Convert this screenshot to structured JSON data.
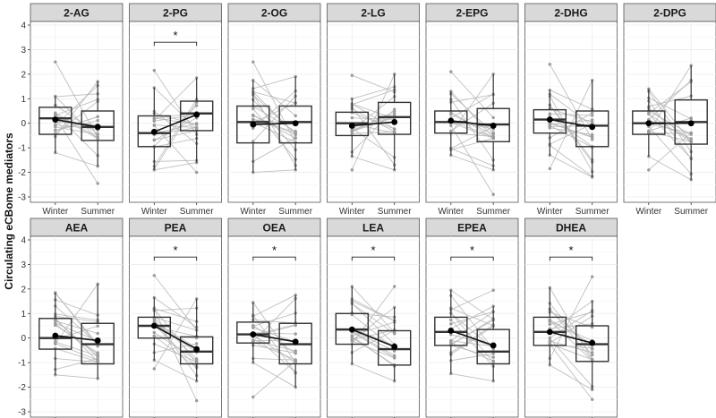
{
  "chart_data": {
    "type": "boxplot-faceted",
    "ylabel": "Circulating eCBome mediators",
    "ylim": [
      -3,
      4
    ],
    "yticks": [
      -3,
      -2,
      -1,
      0,
      1,
      2,
      3,
      4
    ],
    "groups": [
      "Winter",
      "Summer"
    ],
    "significance_label": "*",
    "colors": {
      "strip": "#d9d9d9",
      "box": "#333333",
      "lines": "#b5b5b5",
      "mean": "#000000",
      "grid": "#ececec"
    },
    "panels": [
      {
        "name": "2-AG",
        "significant": false,
        "mean": [
          0.15,
          -0.15
        ],
        "box": [
          {
            "min": -1.2,
            "q1": -0.45,
            "median": 0.2,
            "q3": 0.65,
            "max": 1.1,
            "outliers": [
              2.5
            ]
          },
          {
            "min": -1.75,
            "q1": -0.7,
            "median": -0.15,
            "q3": 0.5,
            "max": 1.7,
            "outliers": [
              -2.45
            ]
          }
        ]
      },
      {
        "name": "2-PG",
        "significant": true,
        "mean": [
          -0.35,
          0.35
        ],
        "box": [
          {
            "min": -1.9,
            "q1": -0.95,
            "median": -0.4,
            "q3": 0.3,
            "max": 1.45,
            "outliers": [
              2.15
            ]
          },
          {
            "min": -1.6,
            "q1": -0.3,
            "median": 0.4,
            "q3": 0.9,
            "max": 1.85,
            "outliers": [
              -2.0
            ]
          }
        ]
      },
      {
        "name": "2-OG",
        "significant": false,
        "mean": [
          -0.05,
          0.0
        ],
        "box": [
          {
            "min": -2.0,
            "q1": -0.8,
            "median": 0.05,
            "q3": 0.7,
            "max": 1.75,
            "outliers": [
              2.5
            ]
          },
          {
            "min": -1.9,
            "q1": -0.8,
            "median": 0.05,
            "q3": 0.7,
            "max": 1.9,
            "outliers": []
          }
        ]
      },
      {
        "name": "2-LG",
        "significant": false,
        "mean": [
          -0.1,
          0.05
        ],
        "box": [
          {
            "min": -1.35,
            "q1": -0.5,
            "median": 0.0,
            "q3": 0.45,
            "max": 1.0,
            "outliers": [
              1.95,
              -1.9
            ]
          },
          {
            "min": -1.9,
            "q1": -0.45,
            "median": 0.25,
            "q3": 0.85,
            "max": 2.0,
            "outliers": []
          }
        ]
      },
      {
        "name": "2-EPG",
        "significant": false,
        "mean": [
          0.1,
          -0.1
        ],
        "box": [
          {
            "min": -1.3,
            "q1": -0.4,
            "median": 0.05,
            "q3": 0.5,
            "max": 1.3,
            "outliers": [
              2.1
            ]
          },
          {
            "min": -1.9,
            "q1": -0.75,
            "median": -0.05,
            "q3": 0.6,
            "max": 2.0,
            "outliers": [
              -2.9
            ]
          }
        ]
      },
      {
        "name": "2-DHG",
        "significant": false,
        "mean": [
          0.15,
          -0.15
        ],
        "box": [
          {
            "min": -1.3,
            "q1": -0.4,
            "median": 0.15,
            "q3": 0.55,
            "max": 1.35,
            "outliers": [
              2.4,
              -1.85
            ]
          },
          {
            "min": -2.2,
            "q1": -0.95,
            "median": -0.1,
            "q3": 0.5,
            "max": 1.75,
            "outliers": []
          }
        ]
      },
      {
        "name": "2-DPG",
        "significant": false,
        "mean": [
          0.0,
          0.0
        ],
        "box": [
          {
            "min": -1.35,
            "q1": -0.45,
            "median": 0.0,
            "q3": 0.5,
            "max": 1.4,
            "outliers": [
              -1.9
            ]
          },
          {
            "min": -2.3,
            "q1": -0.85,
            "median": 0.05,
            "q3": 0.95,
            "max": 2.35,
            "outliers": []
          }
        ]
      },
      {
        "name": "AEA",
        "significant": false,
        "mean": [
          0.1,
          -0.1
        ],
        "box": [
          {
            "min": -1.5,
            "q1": -0.45,
            "median": 0.0,
            "q3": 0.8,
            "max": 1.85,
            "outliers": []
          },
          {
            "min": -1.65,
            "q1": -1.05,
            "median": -0.25,
            "q3": 0.6,
            "max": 2.2,
            "outliers": []
          }
        ]
      },
      {
        "name": "PEA",
        "significant": true,
        "mean": [
          0.5,
          -0.45
        ],
        "box": [
          {
            "min": -0.9,
            "q1": 0.0,
            "median": 0.5,
            "q3": 0.85,
            "max": 1.65,
            "outliers": [
              2.55,
              -1.25
            ]
          },
          {
            "min": -1.75,
            "q1": -1.05,
            "median": -0.55,
            "q3": 0.05,
            "max": 1.6,
            "outliers": [
              -2.55
            ]
          }
        ]
      },
      {
        "name": "OEA",
        "significant": true,
        "mean": [
          0.15,
          -0.15
        ],
        "box": [
          {
            "min": -1.0,
            "q1": -0.2,
            "median": 0.15,
            "q3": 0.65,
            "max": 1.45,
            "outliers": [
              -2.4
            ]
          },
          {
            "min": -2.0,
            "q1": -1.05,
            "median": -0.25,
            "q3": 0.6,
            "max": 1.75,
            "outliers": []
          }
        ]
      },
      {
        "name": "LEA",
        "significant": true,
        "mean": [
          0.35,
          -0.35
        ],
        "box": [
          {
            "min": -1.05,
            "q1": -0.25,
            "median": 0.35,
            "q3": 1.0,
            "max": 2.1,
            "outliers": []
          },
          {
            "min": -1.75,
            "q1": -1.1,
            "median": -0.45,
            "q3": 0.3,
            "max": 1.25,
            "outliers": [
              2.1
            ]
          }
        ]
      },
      {
        "name": "EPEA",
        "significant": true,
        "mean": [
          0.3,
          -0.3
        ],
        "box": [
          {
            "min": -1.45,
            "q1": -0.3,
            "median": 0.25,
            "q3": 0.85,
            "max": 1.95,
            "outliers": []
          },
          {
            "min": -1.75,
            "q1": -1.05,
            "median": -0.55,
            "q3": 0.35,
            "max": 1.3,
            "outliers": [
              1.95
            ]
          }
        ]
      },
      {
        "name": "DHEA",
        "significant": true,
        "mean": [
          0.25,
          -0.2
        ],
        "box": [
          {
            "min": -1.1,
            "q1": -0.3,
            "median": 0.25,
            "q3": 0.85,
            "max": 2.05,
            "outliers": []
          },
          {
            "min": -2.1,
            "q1": -0.95,
            "median": -0.25,
            "q3": 0.5,
            "max": 1.5,
            "outliers": [
              2.5,
              -2.5
            ]
          }
        ]
      }
    ]
  }
}
